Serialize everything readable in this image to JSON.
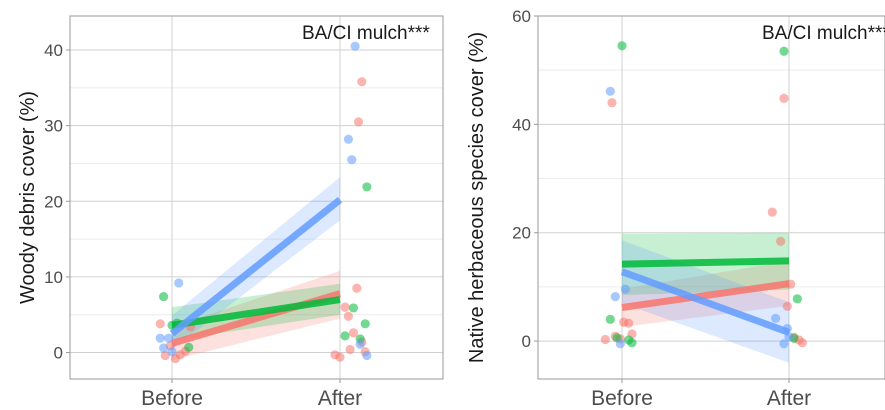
{
  "colors": {
    "red": "#f8766d",
    "green": "#00ba38",
    "blue": "#619cff",
    "grid_major": "#d0d0d0",
    "grid_minor": "#ececec",
    "panel_border": "#9a9a9a",
    "text": "#1a1a1a",
    "tick_text": "#4d4d4d"
  },
  "chart_data": [
    {
      "type": "scatter",
      "subtype": "points with fitted lines and confidence bands",
      "annotation": "BA/CI mulch***",
      "ylabel": "Woody debris cover (%)",
      "xlabel": "",
      "categories": [
        "Before",
        "After"
      ],
      "ylim": [
        -3.5,
        44.5
      ],
      "yticks": [
        0,
        10,
        20,
        30,
        40
      ],
      "grid": true,
      "series": [
        {
          "color_key": "red",
          "line": [
            1.2,
            7.8
          ],
          "band_low": [
            -1.0,
            4.5
          ],
          "band_high": [
            3.4,
            10.8
          ],
          "points": [
            [
              0.93,
              3.8
            ],
            [
              0.96,
              -0.4
            ],
            [
              0.99,
              0.9
            ],
            [
              1.02,
              -0.8
            ],
            [
              1.05,
              -0.3
            ],
            [
              1.08,
              0.2
            ],
            [
              1.11,
              3.4
            ],
            [
              1.97,
              -0.3
            ],
            [
              2.0,
              -0.6
            ],
            [
              2.03,
              6.0
            ],
            [
              2.06,
              0.4
            ],
            [
              2.08,
              2.6
            ],
            [
              2.1,
              8.5
            ],
            [
              2.11,
              30.5
            ],
            [
              2.13,
              35.8
            ],
            [
              2.13,
              1.4
            ],
            [
              2.15,
              0.1
            ],
            [
              2.05,
              4.8
            ]
          ]
        },
        {
          "color_key": "green",
          "line": [
            3.6,
            7.0
          ],
          "band_low": [
            1.6,
            5.0
          ],
          "band_high": [
            6.0,
            9.1
          ],
          "points": [
            [
              0.95,
              7.4
            ],
            [
              1.0,
              3.6
            ],
            [
              1.03,
              3.9
            ],
            [
              1.1,
              0.7
            ],
            [
              2.03,
              2.2
            ],
            [
              2.08,
              5.9
            ],
            [
              2.12,
              1.8
            ],
            [
              2.15,
              3.8
            ],
            [
              2.16,
              21.9
            ]
          ]
        },
        {
          "color_key": "blue",
          "line": [
            2.5,
            20.2
          ],
          "band_low": [
            0.4,
            17.5
          ],
          "band_high": [
            4.9,
            23.2
          ],
          "points": [
            [
              0.93,
              1.9
            ],
            [
              0.95,
              0.6
            ],
            [
              0.98,
              1.9
            ],
            [
              1.0,
              0.1
            ],
            [
              1.04,
              9.2
            ],
            [
              2.05,
              28.2
            ],
            [
              2.07,
              25.5
            ],
            [
              2.09,
              40.5
            ],
            [
              2.12,
              1.1
            ],
            [
              2.16,
              -0.4
            ]
          ]
        }
      ]
    },
    {
      "type": "scatter",
      "subtype": "points with fitted lines and confidence bands",
      "annotation": "BA/CI mulch***",
      "ylabel": "Native herbaceous species cover (%)",
      "xlabel": "",
      "categories": [
        "Before",
        "After"
      ],
      "ylim": [
        -7,
        60
      ],
      "yticks": [
        0,
        20,
        40,
        60
      ],
      "grid": true,
      "series": [
        {
          "color_key": "red",
          "line": [
            6.2,
            10.6
          ],
          "band_low": [
            2.6,
            6.5
          ],
          "band_high": [
            9.6,
            14.8
          ],
          "points": [
            [
              0.9,
              0.3
            ],
            [
              0.94,
              44.0
            ],
            [
              0.96,
              0.9
            ],
            [
              0.99,
              0.4
            ],
            [
              1.01,
              3.5
            ],
            [
              1.04,
              3.3
            ],
            [
              1.06,
              1.3
            ],
            [
              1.9,
              23.8
            ],
            [
              1.95,
              18.4
            ],
            [
              1.97,
              44.8
            ],
            [
              1.99,
              6.4
            ],
            [
              2.01,
              10.5
            ],
            [
              2.03,
              0.7
            ],
            [
              2.06,
              0.2
            ],
            [
              2.08,
              -0.3
            ]
          ]
        },
        {
          "color_key": "green",
          "line": [
            14.2,
            14.8
          ],
          "band_low": [
            8.5,
            9.5
          ],
          "band_high": [
            19.8,
            20.0
          ],
          "points": [
            [
              0.93,
              4.0
            ],
            [
              0.97,
              0.6
            ],
            [
              1.0,
              54.5
            ],
            [
              1.04,
              0.2
            ],
            [
              1.06,
              -0.3
            ],
            [
              1.97,
              53.5
            ],
            [
              2.03,
              0.5
            ],
            [
              2.05,
              7.8
            ]
          ]
        },
        {
          "color_key": "blue",
          "line": [
            12.8,
            1.6
          ],
          "band_low": [
            7.0,
            -4.0
          ],
          "band_high": [
            18.6,
            7.2
          ],
          "points": [
            [
              0.93,
              46.1
            ],
            [
              0.96,
              8.2
            ],
            [
              0.99,
              -0.5
            ],
            [
              1.02,
              9.6
            ],
            [
              1.92,
              4.2
            ],
            [
              1.97,
              -0.5
            ],
            [
              1.99,
              2.3
            ],
            [
              2.0,
              0.8
            ]
          ]
        }
      ]
    }
  ]
}
